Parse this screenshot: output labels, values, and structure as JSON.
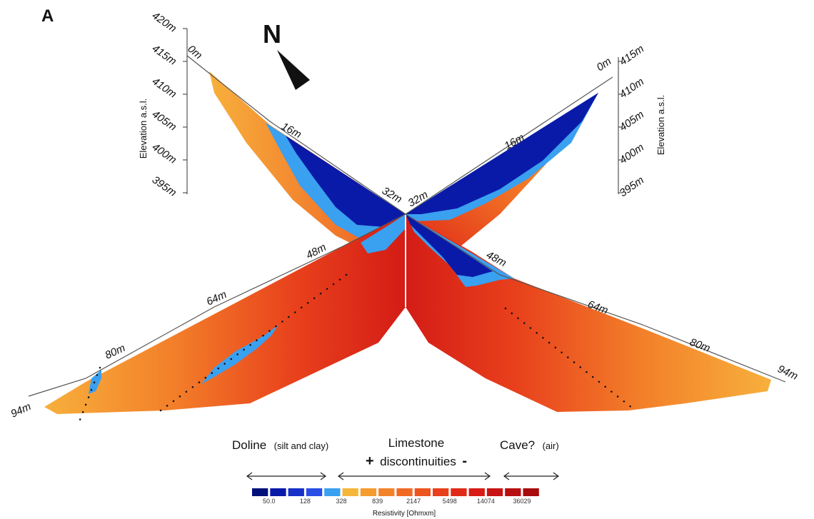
{
  "panel_label": "A",
  "north_label": "N",
  "left_axis": {
    "title": "Elevation a.s.l.",
    "ticks": [
      "420m",
      "415m",
      "410m",
      "405m",
      "400m",
      "395m"
    ]
  },
  "right_axis": {
    "title": "Elevation a.s.l.",
    "ticks": [
      "415m",
      "410m",
      "405m",
      "400m",
      "395m"
    ]
  },
  "profile_1": {
    "distance_labels": [
      "0m",
      "16m",
      "32m",
      "48m",
      "64m",
      "80m",
      "94m"
    ]
  },
  "profile_2": {
    "distance_labels": [
      "0m",
      "16m",
      "32m",
      "48m",
      "64m",
      "80m",
      "94m"
    ]
  },
  "interpretation": {
    "doline": "Doline",
    "doline_detail": "(silt and clay)",
    "limestone": "Limestone",
    "plus": "+",
    "discontinuities": "discontinuities",
    "minus": "-",
    "cave": "Cave?",
    "cave_detail": "(air)"
  },
  "colorbar": {
    "title": "Resistivity [Ohmxm]",
    "colors": [
      "#00107a",
      "#0a1aa8",
      "#1630c8",
      "#2a4ee6",
      "#3aa0f0",
      "#f6b63a",
      "#f59b30",
      "#f3832a",
      "#f06a24",
      "#ec5520",
      "#e8401c",
      "#e02a18",
      "#d81c16",
      "#c81414",
      "#b81010",
      "#a80c0c"
    ],
    "tick_labels": [
      "50.0",
      "128",
      "328",
      "839",
      "2147",
      "5498",
      "14074",
      "36029"
    ]
  }
}
